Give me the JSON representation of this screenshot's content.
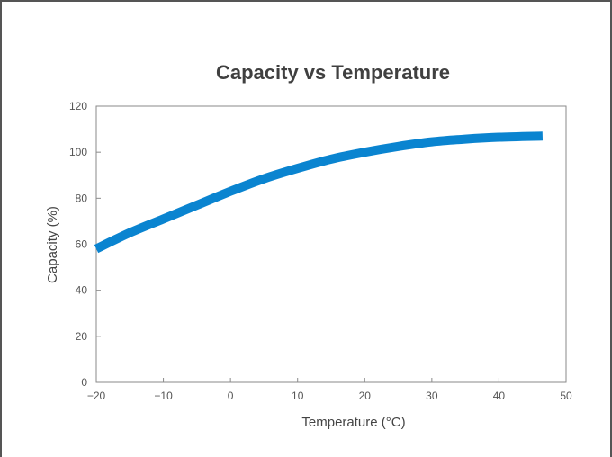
{
  "chart_data": {
    "type": "line",
    "title": "Capacity vs Temperature",
    "xlabel": "Temperature (°C)",
    "ylabel": "Capacity (%)",
    "xlim": [
      -20,
      50
    ],
    "ylim": [
      0,
      120
    ],
    "x_ticks": [
      -20,
      -10,
      0,
      10,
      20,
      30,
      40,
      50
    ],
    "x_tick_labels": [
      "−20",
      "−10",
      "0",
      "10",
      "20",
      "30",
      "40",
      "50"
    ],
    "y_ticks": [
      0,
      20,
      40,
      60,
      80,
      100,
      120
    ],
    "y_tick_labels": [
      "0",
      "20",
      "40",
      "60",
      "80",
      "100",
      "120"
    ],
    "grid": false,
    "series": [
      {
        "color": "#0a84d0",
        "x": [
          -20,
          -15,
          -10,
          -5,
          0,
          5,
          10,
          15,
          20,
          25,
          30,
          35,
          40,
          46.5
        ],
        "y": [
          58,
          65,
          71,
          77,
          83,
          88.5,
          93,
          97,
          100,
          102.5,
          104.5,
          105.7,
          106.5,
          107
        ]
      }
    ]
  }
}
